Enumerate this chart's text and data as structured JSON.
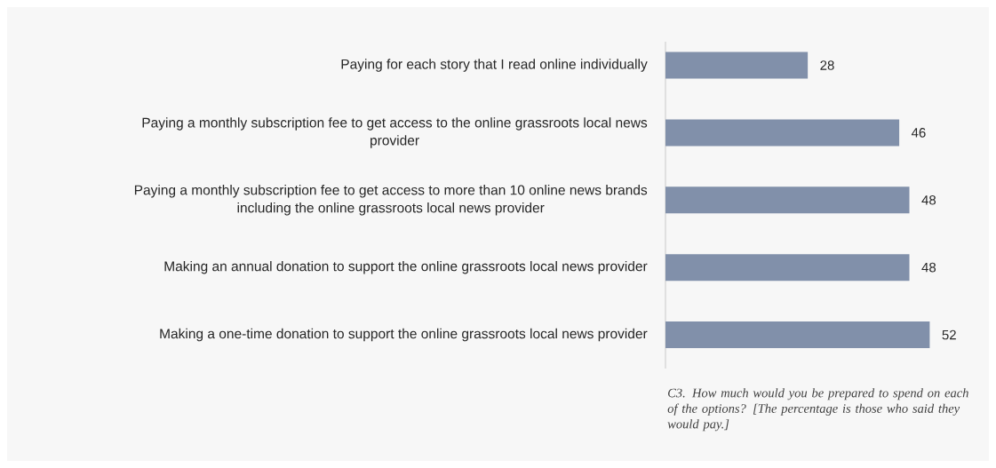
{
  "chart_data": {
    "type": "bar",
    "orientation": "horizontal",
    "categories": [
      "Paying for each story that I read online individually",
      "Paying a monthly subscription fee to get access to the online grassroots local news provider",
      "Paying a monthly subscription fee to get access to more than 10 online news brands including the online grassroots local news provider",
      "Making an annual donation to support the online grassroots local news provider",
      "Making a one-time donation to support the online grassroots local news provider"
    ],
    "values": [
      28,
      46,
      48,
      48,
      52
    ],
    "color": "#8190aa",
    "data_labels": true,
    "annotations": [
      "C3. How much would you be prepared to spend on each of the options? [The percentage is those who said they would pay.]"
    ]
  }
}
